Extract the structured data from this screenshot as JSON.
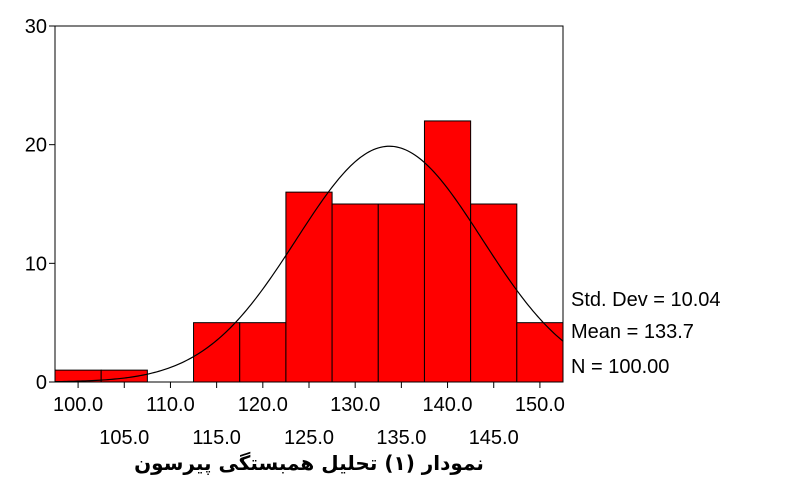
{
  "chart_data": {
    "type": "bar",
    "categories": [
      "100.0",
      "105.0",
      "110.0",
      "115.0",
      "120.0",
      "125.0",
      "130.0",
      "135.0",
      "140.0",
      "145.0",
      "150.0"
    ],
    "values": [
      1,
      1,
      0,
      5,
      5,
      16,
      15,
      15,
      22,
      15,
      5
    ],
    "bin_width": 5,
    "xlim": [
      97.5,
      152.5
    ],
    "ylim": [
      0,
      30
    ],
    "yticks": [
      "0",
      "10",
      "20",
      "30"
    ],
    "xticks_top_row": [
      "100.0",
      "110.0",
      "120.0",
      "130.0",
      "140.0",
      "150.0"
    ],
    "xticks_bottom_row": [
      "105.0",
      "115.0",
      "125.0",
      "135.0",
      "145.0"
    ],
    "normal_curve": {
      "mean": 133.7,
      "std": 10.04,
      "n": 100
    },
    "bar_color": "#ff0000",
    "grid": false,
    "stats": {
      "std": "Std. Dev = 10.04",
      "mean": "Mean = 133.7",
      "n": "N = 100.00"
    },
    "caption": "نمودار (۱) تحلیل همبستگی پیرسون"
  }
}
